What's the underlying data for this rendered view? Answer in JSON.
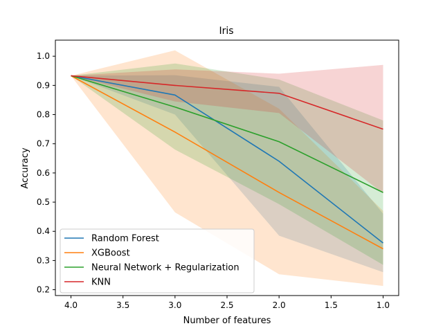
{
  "chart_data": {
    "type": "line",
    "title": "Iris",
    "xlabel": "Number of features",
    "ylabel": "Accuracy",
    "x": [
      4.0,
      3.0,
      2.0,
      1.0
    ],
    "xlim": [
      4.15,
      0.85
    ],
    "ylim": [
      0.18,
      1.055
    ],
    "xticks": [
      4.0,
      3.5,
      3.0,
      2.5,
      2.0,
      1.5,
      1.0
    ],
    "xtick_labels": [
      "4.0",
      "3.5",
      "3.0",
      "2.5",
      "2.0",
      "1.5",
      "1.0"
    ],
    "yticks": [
      0.2,
      0.3,
      0.4,
      0.5,
      0.6,
      0.7,
      0.8,
      0.9,
      1.0
    ],
    "ytick_labels": [
      "0.2",
      "0.3",
      "0.4",
      "0.5",
      "0.6",
      "0.7",
      "0.8",
      "0.9",
      "1.0"
    ],
    "grid": false,
    "legend_position": "lower-left",
    "series": [
      {
        "name": "Random Forest",
        "color": "#1f77b4",
        "values": [
          0.933,
          0.867,
          0.64,
          0.36
        ],
        "lower": [
          0.933,
          0.8,
          0.385,
          0.26
        ],
        "upper": [
          0.933,
          0.935,
          0.895,
          0.46
        ]
      },
      {
        "name": "XGBoost",
        "color": "#ff7f0e",
        "values": [
          0.933,
          0.74,
          0.533,
          0.34
        ],
        "lower": [
          0.933,
          0.465,
          0.253,
          0.213
        ],
        "upper": [
          0.933,
          1.02,
          0.82,
          0.47
        ]
      },
      {
        "name": "Neural Network + Regularization",
        "color": "#2ca02c",
        "values": [
          0.933,
          0.826,
          0.707,
          0.533
        ],
        "lower": [
          0.933,
          0.68,
          0.493,
          0.285
        ],
        "upper": [
          0.933,
          0.975,
          0.92,
          0.78
        ]
      },
      {
        "name": "KNN",
        "color": "#d62728",
        "values": [
          0.933,
          0.9,
          0.873,
          0.75
        ],
        "lower": [
          0.933,
          0.845,
          0.805,
          0.53
        ],
        "upper": [
          0.933,
          0.955,
          0.94,
          0.97
        ]
      }
    ]
  }
}
